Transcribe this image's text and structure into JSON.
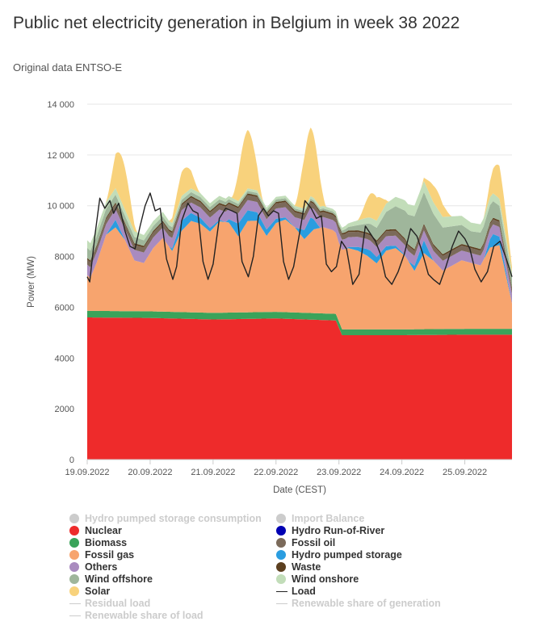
{
  "title": "Public net electricity generation in Belgium in week 38 2022",
  "subtitle": "Original data ENTSO-E",
  "chart_data": {
    "type": "area",
    "title": "Public net electricity generation in Belgium in week 38 2022",
    "xlabel": "Date (CEST)",
    "ylabel": "Power (MW)",
    "ylim": [
      0,
      14000
    ],
    "y_ticks": [
      "0",
      "2000",
      "4000",
      "6000",
      "8000",
      "10 000",
      "12 000",
      "14 000"
    ],
    "x_ticks": [
      "19.09.2022",
      "20.09.2022",
      "21.09.2022",
      "22.09.2022",
      "23.09.2022",
      "24.09.2022",
      "25.09.2022"
    ],
    "x_range_days": [
      0,
      6.75
    ],
    "grid": true,
    "legend_position": "bottom",
    "series": [
      {
        "name": "Nuclear",
        "kind": "area",
        "color": "#ee2b2b",
        "x": [
          0,
          1,
          2,
          3,
          3.95,
          4.05,
          5,
          6,
          6.75
        ],
        "y": [
          5600,
          5580,
          5520,
          5560,
          5480,
          4900,
          4900,
          4920,
          4920
        ]
      },
      {
        "name": "Biomass",
        "kind": "area",
        "color": "#3aa35a",
        "x": [
          0,
          3.95,
          4.05,
          6.75
        ],
        "y": [
          260,
          260,
          230,
          230
        ]
      },
      {
        "name": "Fossil gas",
        "kind": "area",
        "color": "#f7a46e",
        "x": [
          0,
          0.05,
          0.15,
          0.3,
          0.45,
          0.6,
          0.75,
          0.9,
          1.05,
          1.2,
          1.35,
          1.5,
          1.65,
          1.8,
          1.95,
          2.1,
          2.25,
          2.4,
          2.55,
          2.7,
          2.85,
          3.0,
          3.15,
          3.3,
          3.45,
          3.6,
          3.75,
          3.9,
          4.0,
          4.15,
          4.3,
          4.45,
          4.6,
          4.75,
          4.9,
          5.05,
          5.2,
          5.35,
          5.5,
          5.65,
          5.8,
          5.95,
          6.1,
          6.25,
          6.4,
          6.55,
          6.75
        ],
        "y": [
          1400,
          1300,
          1900,
          3000,
          3300,
          2800,
          2000,
          1900,
          2500,
          2900,
          2400,
          3200,
          3600,
          3500,
          3200,
          3600,
          3550,
          3000,
          3600,
          3600,
          3000,
          3500,
          3650,
          3350,
          2900,
          3300,
          3400,
          3300,
          3100,
          3200,
          3100,
          2900,
          2600,
          3100,
          3200,
          2900,
          2300,
          3000,
          2700,
          2300,
          2500,
          2700,
          2600,
          2500,
          3200,
          3300,
          1000
        ]
      },
      {
        "name": "Hydro pumped storage",
        "kind": "area",
        "color": "#2a9de0",
        "x": [
          0,
          0.3,
          0.45,
          0.6,
          1.3,
          1.5,
          2.2,
          2.4,
          3.3,
          3.55,
          3.7,
          4.1,
          4.5,
          5.1,
          5.35,
          5.5,
          6.3,
          6.45,
          6.75
        ],
        "y": [
          0,
          0,
          300,
          0,
          0,
          400,
          0,
          500,
          0,
          600,
          0,
          0,
          300,
          0,
          500,
          0,
          0,
          500,
          0
        ]
      },
      {
        "name": "Others",
        "kind": "area",
        "color": "#a98bbf",
        "x": [
          0,
          6.75
        ],
        "y": [
          420,
          380
        ]
      },
      {
        "name": "Fossil oil",
        "kind": "area",
        "color": "#7b6a5a",
        "x": [
          0,
          6.75
        ],
        "y": [
          200,
          200
        ]
      },
      {
        "name": "Waste",
        "kind": "area",
        "color": "#5c3f1f",
        "x": [
          0,
          6.75
        ],
        "y": [
          60,
          60
        ]
      },
      {
        "name": "Wind offshore",
        "kind": "area",
        "color": "#9fb69b",
        "x": [
          0,
          0.5,
          1.0,
          1.5,
          2.0,
          2.5,
          3.0,
          3.5,
          4.0,
          4.3,
          4.6,
          4.9,
          5.2,
          5.5,
          5.8,
          6.1,
          6.4,
          6.75
        ],
        "y": [
          400,
          300,
          200,
          150,
          150,
          100,
          100,
          80,
          80,
          200,
          500,
          900,
          1300,
          1200,
          900,
          600,
          700,
          400
        ]
      },
      {
        "name": "Wind onshore",
        "kind": "area",
        "color": "#c2ddb9",
        "x": [
          0,
          0.5,
          1.0,
          1.5,
          2.0,
          2.5,
          3.0,
          3.5,
          4.0,
          4.5,
          5.0,
          5.5,
          6.0,
          6.5,
          6.75
        ],
        "y": [
          300,
          250,
          200,
          150,
          150,
          100,
          100,
          100,
          100,
          250,
          400,
          450,
          350,
          300,
          200
        ]
      },
      {
        "name": "Solar",
        "kind": "area",
        "color": "#f8d27c",
        "solar_peaks": [
          {
            "day": 0,
            "peak": 1800
          },
          {
            "day": 1,
            "peak": 1000
          },
          {
            "day": 2,
            "peak": 2300
          },
          {
            "day": 3,
            "peak": 2700
          },
          {
            "day": 4,
            "peak": 1000
          },
          {
            "day": 5,
            "peak": 700
          },
          {
            "day": 6,
            "peak": 1300
          }
        ]
      },
      {
        "name": "Load",
        "kind": "line",
        "color": "#222222",
        "x": [
          0,
          0.04,
          0.12,
          0.2,
          0.28,
          0.36,
          0.42,
          0.5,
          0.6,
          0.68,
          0.76,
          0.84,
          0.92,
          1.0,
          1.08,
          1.16,
          1.26,
          1.36,
          1.42,
          1.5,
          1.6,
          1.68,
          1.76,
          1.84,
          1.92,
          2.0,
          2.1,
          2.2,
          2.3,
          2.38,
          2.46,
          2.56,
          2.64,
          2.72,
          2.8,
          2.88,
          2.96,
          3.04,
          3.12,
          3.2,
          3.28,
          3.38,
          3.46,
          3.56,
          3.64,
          3.72,
          3.8,
          3.88,
          3.96,
          4.04,
          4.12,
          4.22,
          4.32,
          4.42,
          4.5,
          4.58,
          4.66,
          4.74,
          4.84,
          4.94,
          5.04,
          5.14,
          5.24,
          5.32,
          5.42,
          5.5,
          5.6,
          5.7,
          5.8,
          5.9,
          6.0,
          6.08,
          6.16,
          6.26,
          6.36,
          6.46,
          6.56,
          6.66,
          6.75
        ],
        "y": [
          7200,
          7000,
          8800,
          10300,
          9900,
          10200,
          9700,
          10100,
          9000,
          8400,
          8300,
          9200,
          10000,
          10500,
          9800,
          9900,
          7900,
          7100,
          7600,
          9400,
          10100,
          9800,
          9700,
          7800,
          7100,
          7700,
          9500,
          9900,
          9800,
          9700,
          7800,
          7200,
          8000,
          9600,
          9900,
          9600,
          9800,
          9700,
          7800,
          7100,
          7600,
          9000,
          10200,
          9900,
          9500,
          9600,
          7700,
          7400,
          7600,
          8600,
          8300,
          6900,
          7300,
          9200,
          8900,
          8600,
          8100,
          7200,
          6900,
          7400,
          8100,
          9100,
          8800,
          8200,
          7300,
          7100,
          6900,
          7600,
          8400,
          9000,
          8700,
          8300,
          7500,
          7000,
          7400,
          8400,
          8600,
          7900,
          7200
        ]
      }
    ]
  },
  "legend": {
    "rows": [
      [
        {
          "name": "Hydro pumped storage consumption",
          "color": "#cccccc",
          "marker": "dot",
          "hidden": true
        },
        {
          "name": "Import Balance",
          "color": "#cccccc",
          "marker": "dot",
          "hidden": true
        }
      ],
      [
        {
          "name": "Nuclear",
          "color": "#ee2b2b",
          "marker": "dot",
          "hidden": false
        },
        {
          "name": "Hydro Run-of-River",
          "color": "#0000b3",
          "marker": "dot",
          "hidden": false
        }
      ],
      [
        {
          "name": "Biomass",
          "color": "#3aa35a",
          "marker": "dot",
          "hidden": false
        },
        {
          "name": "Fossil oil",
          "color": "#7b6a5a",
          "marker": "dot",
          "hidden": false
        }
      ],
      [
        {
          "name": "Fossil gas",
          "color": "#f7a46e",
          "marker": "dot",
          "hidden": false
        },
        {
          "name": "Hydro pumped storage",
          "color": "#2a9de0",
          "marker": "dot",
          "hidden": false
        }
      ],
      [
        {
          "name": "Others",
          "color": "#a98bbf",
          "marker": "dot",
          "hidden": false
        },
        {
          "name": "Waste",
          "color": "#5c3f1f",
          "marker": "dot",
          "hidden": false
        }
      ],
      [
        {
          "name": "Wind offshore",
          "color": "#9fb69b",
          "marker": "dot",
          "hidden": false
        },
        {
          "name": "Wind onshore",
          "color": "#c2ddb9",
          "marker": "dot",
          "hidden": false
        }
      ],
      [
        {
          "name": "Solar",
          "color": "#f8d27c",
          "marker": "dot",
          "hidden": false
        },
        {
          "name": "Load",
          "color": "#222222",
          "marker": "line",
          "hidden": false
        }
      ],
      [
        {
          "name": "Residual load",
          "color": "#cccccc",
          "marker": "line",
          "hidden": true
        },
        {
          "name": "Renewable share of generation",
          "color": "#cccccc",
          "marker": "line",
          "hidden": true
        }
      ],
      [
        {
          "name": "Renewable share of load",
          "color": "#cccccc",
          "marker": "line",
          "hidden": true
        }
      ]
    ]
  }
}
